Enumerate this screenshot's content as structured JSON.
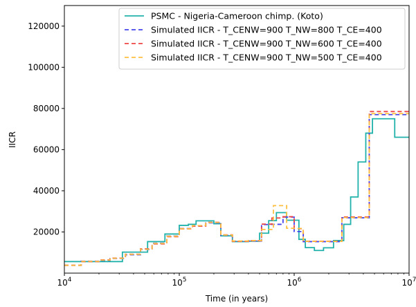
{
  "chart_data": {
    "type": "line",
    "title": "",
    "xlabel": "Time (in years)",
    "ylabel": "IICR",
    "xscale": "log",
    "xlim": [
      10000,
      10000000
    ],
    "ylim": [
      0,
      130000
    ],
    "xticks": [
      {
        "value": 10000,
        "base": "10",
        "exp": "4"
      },
      {
        "value": 100000,
        "base": "10",
        "exp": "5"
      },
      {
        "value": 1000000,
        "base": "10",
        "exp": "6"
      },
      {
        "value": 10000000,
        "base": "10",
        "exp": "7"
      }
    ],
    "yticks": [
      {
        "value": 20000,
        "label": "20000"
      },
      {
        "value": 40000,
        "label": "40000"
      },
      {
        "value": 60000,
        "label": "60000"
      },
      {
        "value": 80000,
        "label": "80000"
      },
      {
        "value": 100000,
        "label": "100000"
      },
      {
        "value": 120000,
        "label": "120000"
      }
    ],
    "grid": false,
    "legend_position": "top-right",
    "series": [
      {
        "name": "PSMC - Nigeria-Cameroon chimp. (Koto)",
        "color": "#20b2aa",
        "dash": "solid",
        "x": [
          10000,
          32000,
          53000,
          75000,
          100000,
          120000,
          140000,
          200000,
          230000,
          290000,
          400000,
          500000,
          600000,
          700000,
          860000,
          1100000,
          1250000,
          1500000,
          1800000,
          2200000,
          2700000,
          3100000,
          3600000,
          4200000,
          4800000,
          5600000,
          7500000,
          10000000
        ],
        "y": [
          5600,
          10200,
          15300,
          19000,
          23200,
          23700,
          25400,
          24000,
          18100,
          15300,
          15500,
          19400,
          25500,
          29400,
          25700,
          16400,
          12400,
          11000,
          12300,
          15800,
          23700,
          37000,
          54000,
          68000,
          75000,
          75000,
          66000,
          66000
        ]
      },
      {
        "name": "Simulated IICR - T_CENW=900 T_NW=800 T_CE=400",
        "color": "#4444ee",
        "dash": "6,4",
        "x": [
          10000,
          14000,
          20000,
          25000,
          34000,
          46000,
          58000,
          78000,
          100000,
          130000,
          170000,
          230000,
          290000,
          400000,
          520000,
          600000,
          800000,
          1000000,
          1200000,
          1600000,
          2600000,
          4500000,
          10000000
        ],
        "y": [
          3800,
          5800,
          6200,
          7100,
          8900,
          11500,
          14500,
          18000,
          21700,
          23000,
          24400,
          18400,
          15500,
          15600,
          23600,
          23700,
          27200,
          20200,
          15300,
          15300,
          26900,
          77000,
          77000
        ]
      },
      {
        "name": "Simulated IICR - T_CENW=900 T_NW=600 T_CE=400",
        "color": "#ee4444",
        "dash": "6,4",
        "x": [
          10000,
          14000,
          20000,
          25000,
          34000,
          46000,
          58000,
          78000,
          100000,
          130000,
          170000,
          230000,
          290000,
          400000,
          520000,
          640000,
          800000,
          1000000,
          1200000,
          1600000,
          2600000,
          4500000,
          10000000
        ],
        "y": [
          3800,
          5600,
          6400,
          7300,
          9200,
          11800,
          14200,
          17700,
          21500,
          22800,
          24700,
          18600,
          15400,
          15700,
          23800,
          26800,
          27400,
          21600,
          15500,
          15500,
          27300,
          78500,
          78500
        ]
      },
      {
        "name": "Simulated IICR - T_CENW=900 T_NW=500 T_CE=400",
        "color": "#ffc040",
        "dash": "6,4",
        "x": [
          10000,
          14000,
          20000,
          25000,
          34000,
          46000,
          58000,
          78000,
          100000,
          130000,
          170000,
          230000,
          290000,
          400000,
          520000,
          660000,
          860000,
          1000000,
          1200000,
          1600000,
          2600000,
          4500000,
          10000000
        ],
        "y": [
          3800,
          5700,
          6300,
          7200,
          9100,
          11600,
          14400,
          17900,
          21600,
          23100,
          24600,
          18500,
          15600,
          15800,
          21200,
          32800,
          21800,
          21700,
          15400,
          15400,
          27000,
          77500,
          77500
        ]
      }
    ]
  }
}
